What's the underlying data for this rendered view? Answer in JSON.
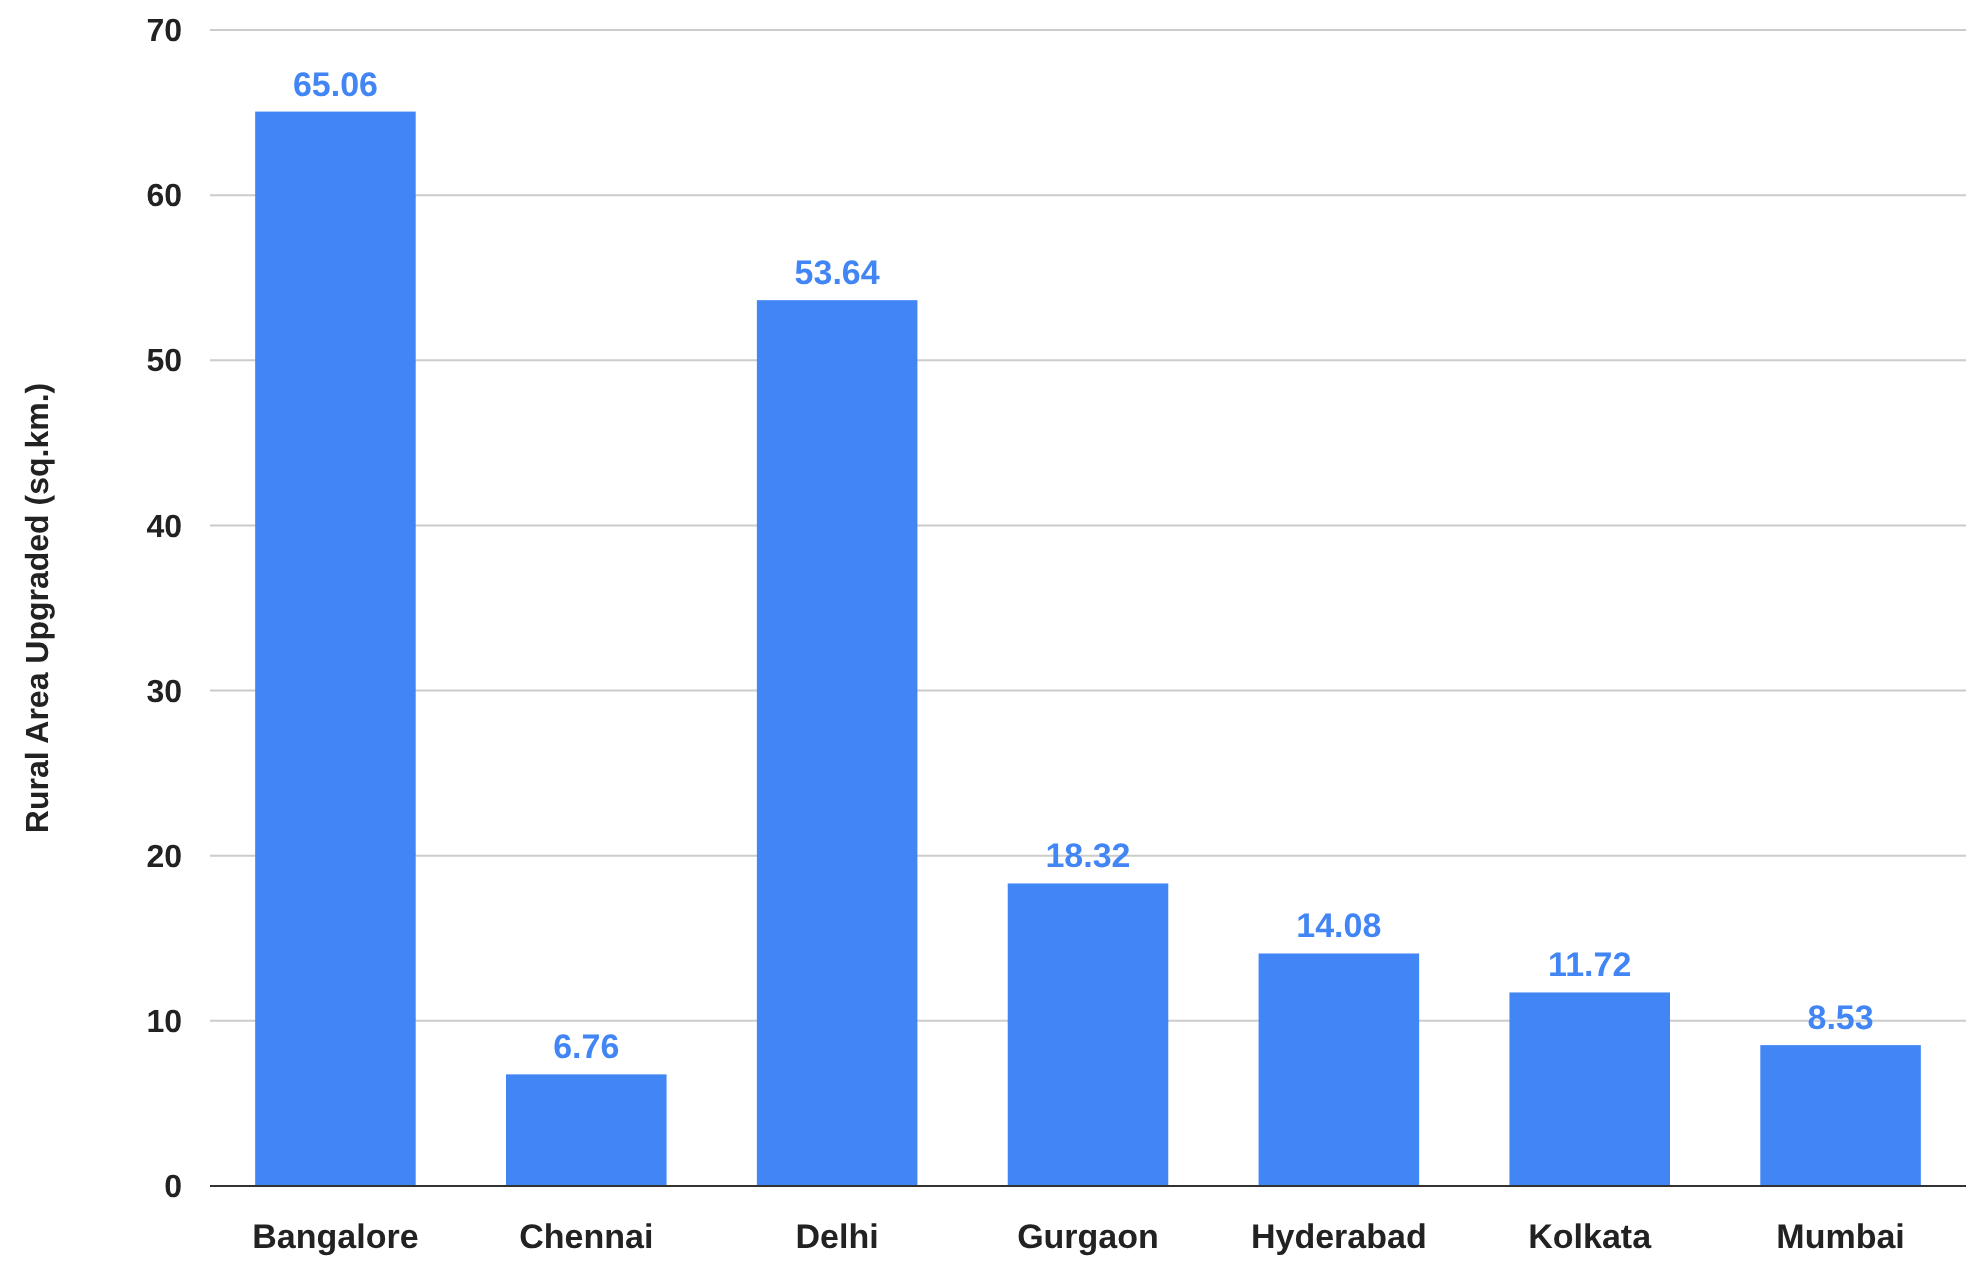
{
  "chart_data": {
    "type": "bar",
    "ylabel": "Rural Area Upgraded (sq.km.)",
    "categories": [
      "Bangalore",
      "Chennai",
      "Delhi",
      "Gurgaon",
      "Hyderabad",
      "Kolkata",
      "Mumbai"
    ],
    "values": [
      65.06,
      6.76,
      53.64,
      18.32,
      14.08,
      11.72,
      8.53
    ],
    "color": "#4285f4",
    "ylim": [
      0,
      70
    ],
    "yticks": [
      0,
      10,
      20,
      30,
      40,
      50,
      60,
      70
    ],
    "grid": "y",
    "data_labels": true
  }
}
